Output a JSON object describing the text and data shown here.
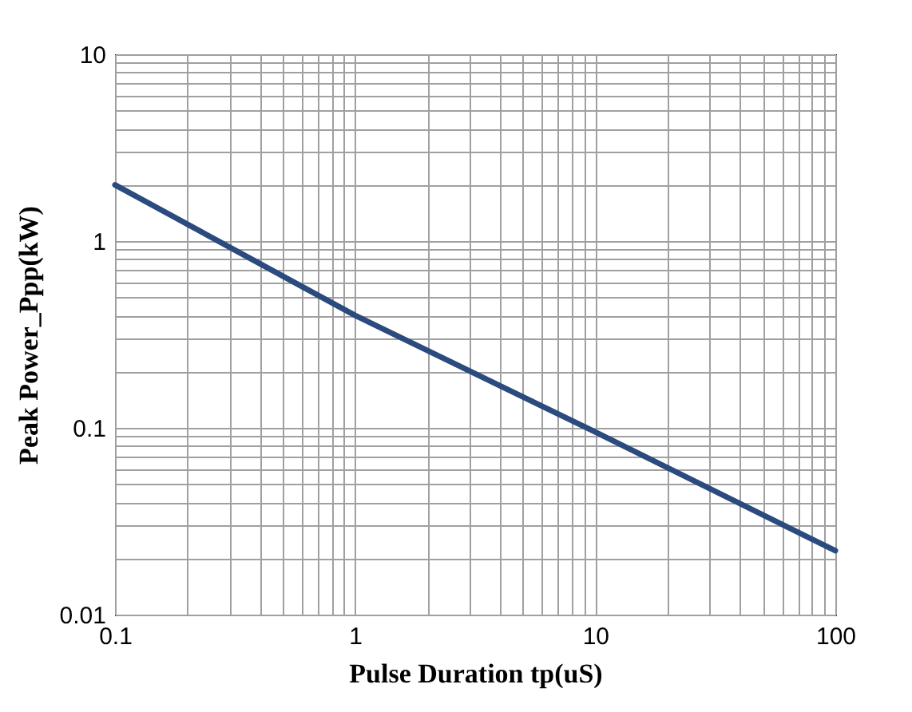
{
  "chart_data": {
    "type": "line",
    "xlabel": "Pulse Duration  tp(uS)",
    "ylabel": "Peak  Power_Ppp(kW)",
    "x": [
      0.1,
      1,
      10,
      100
    ],
    "series": [
      {
        "color": "#2b4a7e",
        "values": [
          2,
          0.4,
          0.095,
          0.022
        ]
      }
    ],
    "log": "xy",
    "grid": true,
    "marker": "none",
    "line_style": "solid",
    "xlim": [
      0.1,
      100
    ],
    "ylim": [
      0.01,
      10
    ],
    "xticks": [
      0.1,
      {
        "value": 0.2,
        "label": null
      },
      {
        "value": 0.3,
        "label": null
      },
      {
        "value": 0.4,
        "label": null
      },
      {
        "value": 0.5,
        "label": null
      },
      {
        "value": 0.6,
        "label": null
      },
      {
        "value": 0.7,
        "label": null
      },
      {
        "value": 0.8,
        "label": null
      },
      {
        "value": 0.9,
        "label": null
      },
      1,
      {
        "value": 2,
        "label": null
      },
      {
        "value": 3,
        "label": null
      },
      {
        "value": 4,
        "label": null
      },
      {
        "value": 5,
        "label": null
      },
      {
        "value": 6,
        "label": null
      },
      {
        "value": 7,
        "label": null
      },
      {
        "value": 8,
        "label": null
      },
      {
        "value": 9,
        "label": null
      },
      10,
      {
        "value": 20,
        "label": null
      },
      {
        "value": 30,
        "label": null
      },
      {
        "value": 40,
        "label": null
      },
      {
        "value": 50,
        "label": null
      },
      {
        "value": 60,
        "label": null
      },
      {
        "value": 70,
        "label": null
      },
      {
        "value": 80,
        "label": null
      },
      {
        "value": 90,
        "label": null
      },
      100
    ],
    "yticks": [
      0.01,
      {
        "value": 0.02,
        "label": null
      },
      {
        "value": 0.03,
        "label": null
      },
      {
        "value": 0.04,
        "label": null
      },
      {
        "value": 0.05,
        "label": null
      },
      {
        "value": 0.06,
        "label": null
      },
      {
        "value": 0.07,
        "label": null
      },
      {
        "value": 0.08,
        "label": null
      },
      {
        "value": 0.09,
        "label": null
      },
      0.1,
      {
        "value": 0.2,
        "label": null
      },
      {
        "value": 0.3,
        "label": null
      },
      {
        "value": 0.4,
        "label": null
      },
      {
        "value": 0.5,
        "label": null
      },
      {
        "value": 0.6,
        "label": null
      },
      {
        "value": 0.7,
        "label": null
      },
      {
        "value": 0.8,
        "label": null
      },
      {
        "value": 0.9,
        "label": null
      },
      1,
      {
        "value": 2,
        "label": null
      },
      {
        "value": 3,
        "label": null
      },
      {
        "value": 4,
        "label": null
      },
      {
        "value": 5,
        "label": null
      },
      {
        "value": 6,
        "label": null
      },
      {
        "value": 7,
        "label": null
      },
      {
        "value": 8,
        "label": null
      },
      {
        "value": 9,
        "label": null
      },
      10
    ]
  }
}
